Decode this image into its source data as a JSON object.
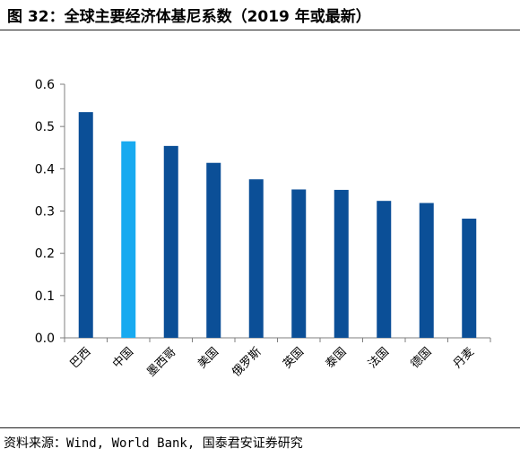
{
  "title": "图 32：全球主要经济体基尼系数（2019 年或最新）",
  "source": "资料来源：Wind, World Bank, 国泰君安证券研究",
  "colors": {
    "default_bar": "#0b4f97",
    "highlight_bar": "#18aaf0",
    "axis": "#7f7f7f"
  },
  "chart_data": {
    "type": "bar",
    "title": "",
    "xlabel": "",
    "ylabel": "",
    "categories": [
      "巴西",
      "中国",
      "墨西哥",
      "美国",
      "俄罗斯",
      "英国",
      "泰国",
      "法国",
      "德国",
      "丹麦"
    ],
    "values": [
      0.534,
      0.465,
      0.454,
      0.414,
      0.375,
      0.351,
      0.35,
      0.324,
      0.319,
      0.282
    ],
    "highlight": [
      false,
      true,
      false,
      false,
      false,
      false,
      false,
      false,
      false,
      false
    ],
    "ylim": [
      0,
      0.6
    ],
    "yticks": [
      "0.0",
      "0.1",
      "0.2",
      "0.3",
      "0.4",
      "0.5",
      "0.6"
    ],
    "grid": false,
    "legend": "none"
  }
}
